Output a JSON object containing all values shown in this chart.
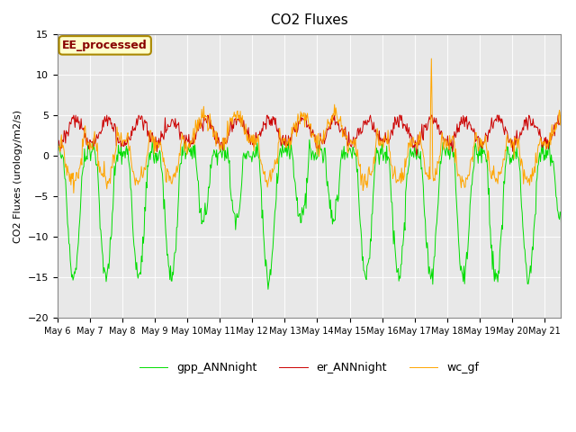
{
  "title": "CO2 Fluxes",
  "ylabel": "CO2 Fluxes (urology/m2/s)",
  "ylim": [
    -20,
    15
  ],
  "yticks": [
    -20,
    -15,
    -10,
    -5,
    0,
    5,
    10,
    15
  ],
  "xlim_days": [
    0,
    15.5
  ],
  "x_tick_positions": [
    0,
    1,
    2,
    3,
    4,
    5,
    6,
    7,
    8,
    9,
    10,
    11,
    12,
    13,
    14,
    15
  ],
  "x_tick_labels": [
    "May 6",
    "May 7",
    "May 8",
    "May 9",
    "May 10",
    "May 11",
    "May 12",
    "May 13",
    "May 14",
    "May 15",
    "May 16",
    "May 17",
    "May 18",
    "May 19",
    "May 20",
    "May 21"
  ],
  "colors": {
    "gpp": "#00DD00",
    "er": "#CC0000",
    "wc": "#FFA500"
  },
  "annotation_text": "EE_processed",
  "annotation_facecolor": "#FFFFCC",
  "annotation_edgecolor": "#AA8800",
  "annotation_textcolor": "#880000",
  "bg_color": "#E8E8E8",
  "legend_labels": [
    "gpp_ANNnight",
    "er_ANNnight",
    "wc_gf"
  ],
  "n_days": 16,
  "points_per_day": 48
}
